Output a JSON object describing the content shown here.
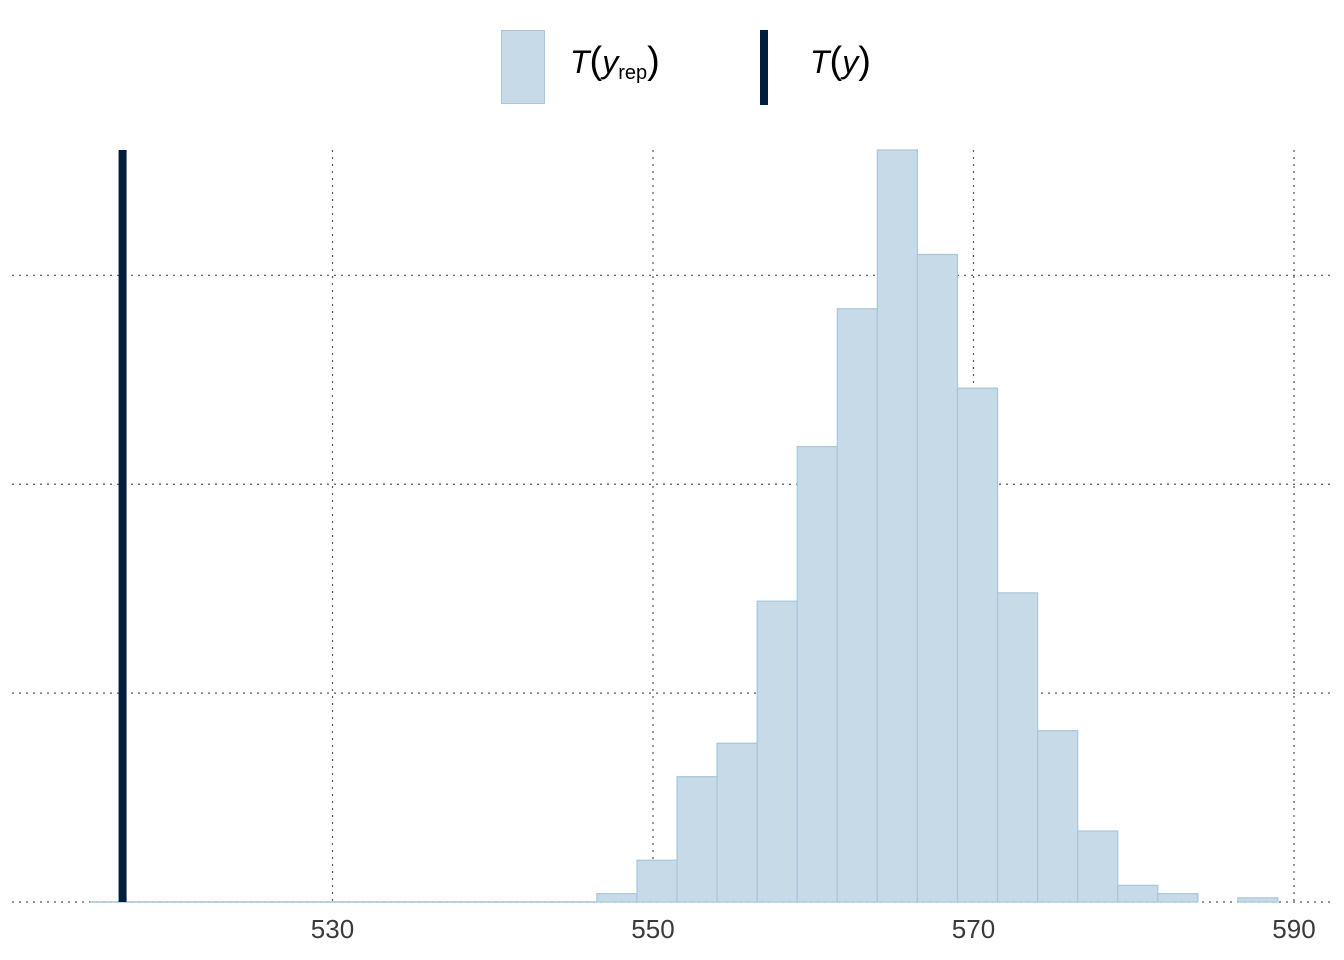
{
  "legend": {
    "rep_label_main": "T",
    "rep_label_var": "y",
    "rep_label_sub": "rep",
    "obs_label_main": "T",
    "obs_label_var": "y"
  },
  "colors": {
    "bar_fill": "#c6dae7",
    "bar_stroke": "#a9c6da",
    "observed_line": "#011e3f",
    "grid": "#555555"
  },
  "chart_data": {
    "type": "bar",
    "subtype": "histogram",
    "xlim": [
      515,
      591
    ],
    "ylim": [
      0,
      180
    ],
    "x_ticks": [
      530,
      550,
      570,
      590
    ],
    "x_tick_labels": [
      "530",
      "550",
      "570",
      "590"
    ],
    "y_grid_values": [
      50,
      100,
      150
    ],
    "grid": "dotted",
    "legend_position": "top",
    "observed_value": 516.9,
    "bin_edges": [
      546.5,
      549,
      551.5,
      554,
      556.5,
      559,
      561.5,
      564,
      566.5,
      569,
      571.5,
      574,
      576.5,
      579,
      581.5,
      584,
      586.5,
      589
    ],
    "counts": [
      2,
      10,
      30,
      38,
      72,
      109,
      142,
      180,
      155,
      123,
      74,
      41,
      17,
      4,
      2,
      0,
      1
    ]
  }
}
